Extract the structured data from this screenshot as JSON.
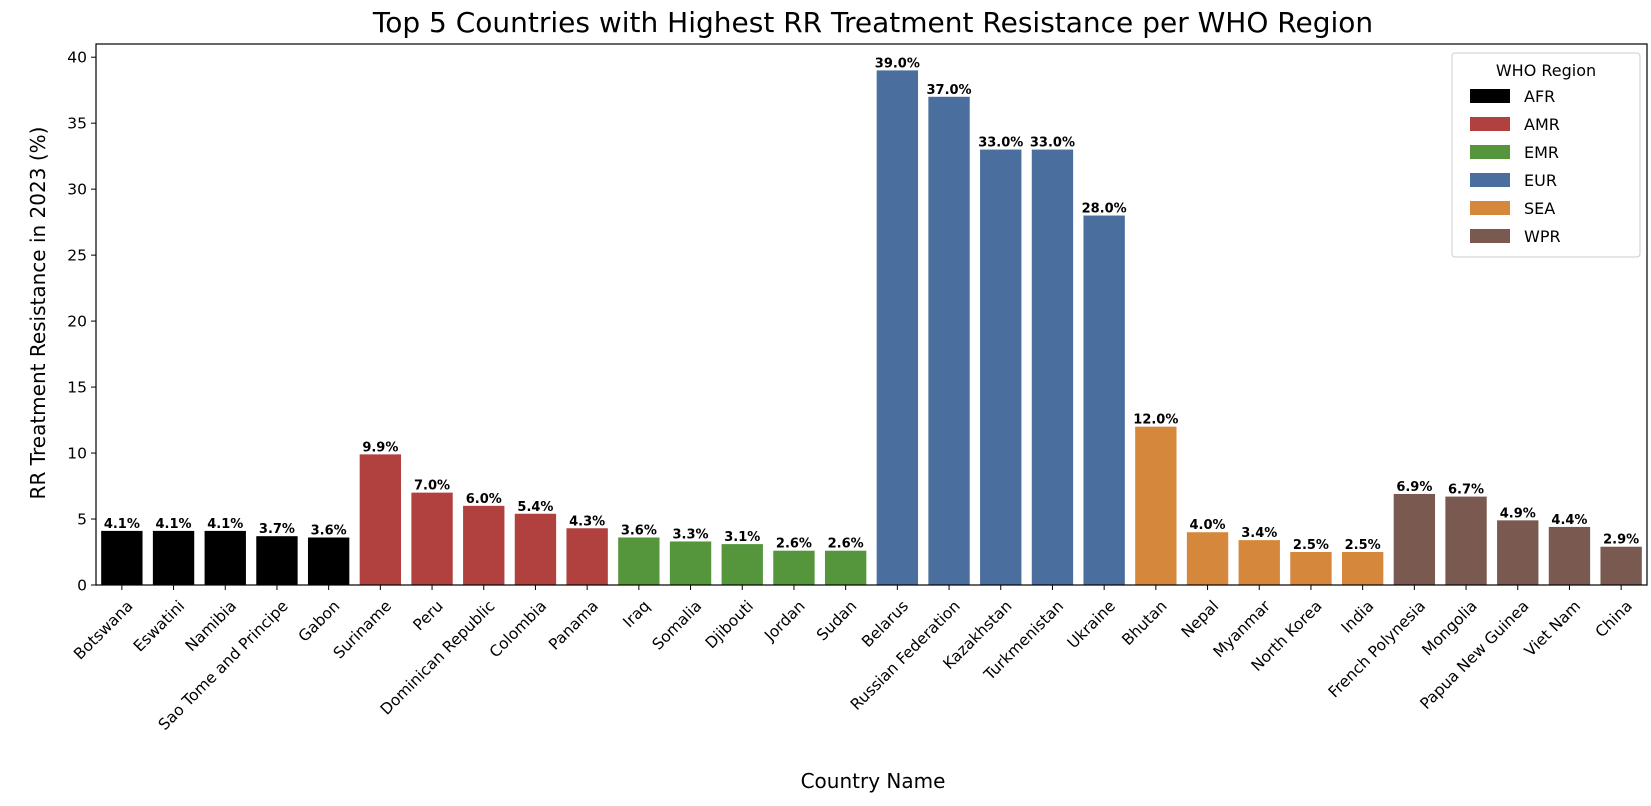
{
  "chart_data": {
    "type": "bar",
    "title": "Top 5 Countries with Highest RR Treatment Resistance per WHO Region",
    "xlabel": "Country Name",
    "ylabel": "RR Treatment Resistance in 2023 (%)",
    "ylim": [
      0,
      41
    ],
    "yticks": [
      0,
      5,
      10,
      15,
      20,
      25,
      30,
      35,
      40
    ],
    "grid": false,
    "legend": {
      "title": "WHO Region",
      "placement": "top-right",
      "entries": [
        {
          "name": "AFR",
          "color": "#000000"
        },
        {
          "name": "AMR",
          "color": "#b0413e"
        },
        {
          "name": "EMR",
          "color": "#55963d"
        },
        {
          "name": "EUR",
          "color": "#4a6f9e"
        },
        {
          "name": "SEA",
          "color": "#d5873c"
        },
        {
          "name": "WPR",
          "color": "#7a5a50"
        }
      ]
    },
    "bars": [
      {
        "category": "Botswana",
        "value": 4.1,
        "label": "4.1%",
        "region": "AFR"
      },
      {
        "category": "Eswatini",
        "value": 4.1,
        "label": "4.1%",
        "region": "AFR"
      },
      {
        "category": "Namibia",
        "value": 4.1,
        "label": "4.1%",
        "region": "AFR"
      },
      {
        "category": "Sao Tome and Principe",
        "value": 3.7,
        "label": "3.7%",
        "region": "AFR"
      },
      {
        "category": "Gabon",
        "value": 3.6,
        "label": "3.6%",
        "region": "AFR"
      },
      {
        "category": "Suriname",
        "value": 9.9,
        "label": "9.9%",
        "region": "AMR"
      },
      {
        "category": "Peru",
        "value": 7.0,
        "label": "7.0%",
        "region": "AMR"
      },
      {
        "category": "Dominican Republic",
        "value": 6.0,
        "label": "6.0%",
        "region": "AMR"
      },
      {
        "category": "Colombia",
        "value": 5.4,
        "label": "5.4%",
        "region": "AMR"
      },
      {
        "category": "Panama",
        "value": 4.3,
        "label": "4.3%",
        "region": "AMR"
      },
      {
        "category": "Iraq",
        "value": 3.6,
        "label": "3.6%",
        "region": "EMR"
      },
      {
        "category": "Somalia",
        "value": 3.3,
        "label": "3.3%",
        "region": "EMR"
      },
      {
        "category": "Djibouti",
        "value": 3.1,
        "label": "3.1%",
        "region": "EMR"
      },
      {
        "category": "Jordan",
        "value": 2.6,
        "label": "2.6%",
        "region": "EMR"
      },
      {
        "category": "Sudan",
        "value": 2.6,
        "label": "2.6%",
        "region": "EMR"
      },
      {
        "category": "Belarus",
        "value": 39.0,
        "label": "39.0%",
        "region": "EUR"
      },
      {
        "category": "Russian Federation",
        "value": 37.0,
        "label": "37.0%",
        "region": "EUR"
      },
      {
        "category": "Kazakhstan",
        "value": 33.0,
        "label": "33.0%",
        "region": "EUR"
      },
      {
        "category": "Turkmenistan",
        "value": 33.0,
        "label": "33.0%",
        "region": "EUR"
      },
      {
        "category": "Ukraine",
        "value": 28.0,
        "label": "28.0%",
        "region": "EUR"
      },
      {
        "category": "Bhutan",
        "value": 12.0,
        "label": "12.0%",
        "region": "SEA"
      },
      {
        "category": "Nepal",
        "value": 4.0,
        "label": "4.0%",
        "region": "SEA"
      },
      {
        "category": "Myanmar",
        "value": 3.4,
        "label": "3.4%",
        "region": "SEA"
      },
      {
        "category": "North Korea",
        "value": 2.5,
        "label": "2.5%",
        "region": "SEA"
      },
      {
        "category": "India",
        "value": 2.5,
        "label": "2.5%",
        "region": "SEA"
      },
      {
        "category": "French Polynesia",
        "value": 6.9,
        "label": "6.9%",
        "region": "WPR"
      },
      {
        "category": "Mongolia",
        "value": 6.7,
        "label": "6.7%",
        "region": "WPR"
      },
      {
        "category": "Papua New Guinea",
        "value": 4.9,
        "label": "4.9%",
        "region": "WPR"
      },
      {
        "category": "Viet Nam",
        "value": 4.4,
        "label": "4.4%",
        "region": "WPR"
      },
      {
        "category": "China",
        "value": 2.9,
        "label": "2.9%",
        "region": "WPR"
      }
    ]
  }
}
